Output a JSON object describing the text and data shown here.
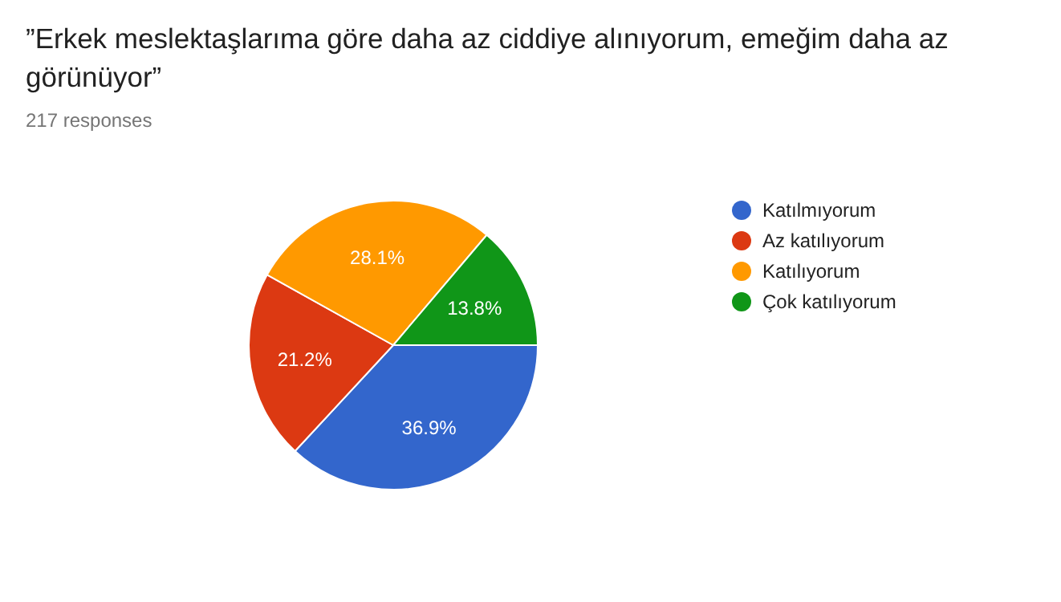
{
  "chart_data": {
    "type": "pie",
    "title": "”Erkek meslektaşlarıma göre daha az ciddiye alınıyorum, emeğim daha az görünüyor”",
    "subtitle": "217 responses",
    "categories": [
      "Katılmıyorum",
      "Az katılıyorum",
      "Katılıyorum",
      "Çok katılıyorum"
    ],
    "values": [
      36.9,
      21.2,
      28.1,
      13.8
    ],
    "colors": [
      "#3366cc",
      "#dc3912",
      "#ff9900",
      "#109618"
    ],
    "value_labels": [
      "36.9%",
      "21.2%",
      "28.1%",
      "13.8%"
    ],
    "legend": "right"
  }
}
